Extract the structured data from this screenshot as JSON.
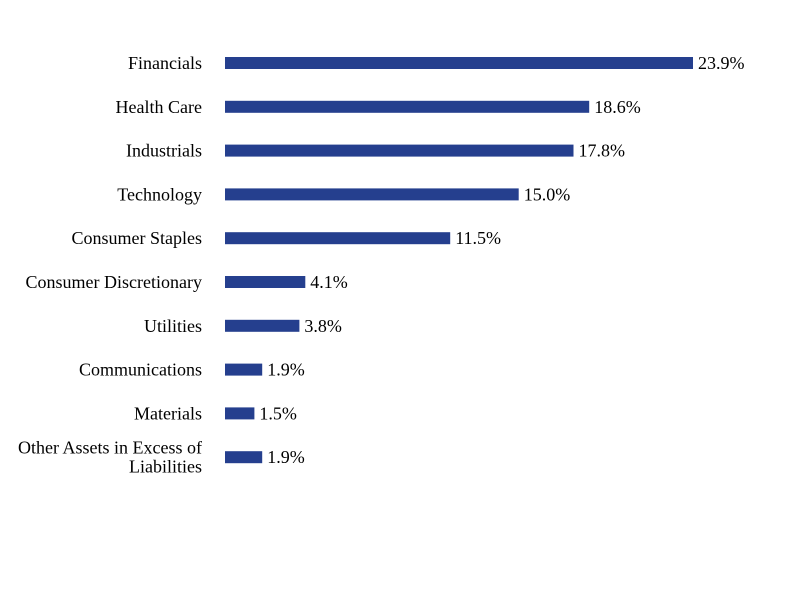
{
  "chart_data": {
    "type": "bar",
    "orientation": "horizontal",
    "categories": [
      "Financials",
      "Health Care",
      "Industrials",
      "Technology",
      "Consumer Staples",
      "Consumer Discretionary",
      "Utilities",
      "Communications",
      "Materials",
      "Other Assets in Excess of Liabilities"
    ],
    "category_lines": [
      [
        "Financials"
      ],
      [
        "Health Care"
      ],
      [
        "Industrials"
      ],
      [
        "Technology"
      ],
      [
        "Consumer Staples"
      ],
      [
        "Consumer Discretionary"
      ],
      [
        "Utilities"
      ],
      [
        "Communications"
      ],
      [
        "Materials"
      ],
      [
        "Other Assets in Excess of",
        "Liabilities"
      ]
    ],
    "values": [
      23.9,
      18.6,
      17.8,
      15.0,
      11.5,
      4.1,
      3.8,
      1.9,
      1.5,
      1.9
    ],
    "value_labels": [
      "23.9%",
      "18.6%",
      "17.8%",
      "15.0%",
      "11.5%",
      "4.1%",
      "3.8%",
      "1.9%",
      "1.5%",
      "1.9%"
    ],
    "title": "",
    "xlabel": "",
    "ylabel": "",
    "grid": false,
    "bar_color": "#253f8e"
  }
}
